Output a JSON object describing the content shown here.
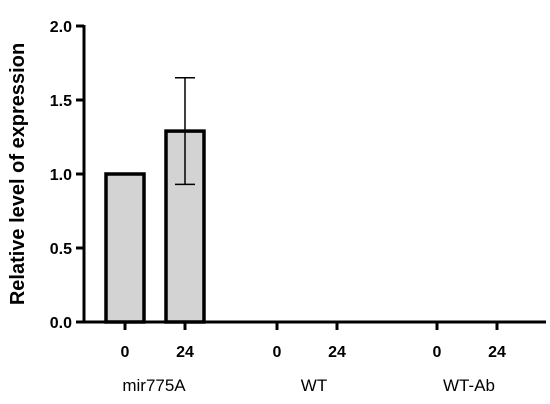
{
  "chart_data": {
    "type": "bar",
    "ylabel": "Relative level of expression",
    "xlabel": "",
    "title": "",
    "ylim": [
      0,
      2.0
    ],
    "yticks": [
      0.0,
      0.5,
      1.0,
      1.5,
      2.0
    ],
    "ytick_labels": [
      "0.0",
      "0.5",
      "1.0",
      "1.5",
      "2.0"
    ],
    "grid": false,
    "bar_fill": "#d3d3d3",
    "bar_stroke": "#000000",
    "groups": [
      {
        "name": "mir775A",
        "bars": [
          {
            "category": "0",
            "value": 1.0,
            "error": null
          },
          {
            "category": "24",
            "value": 1.29,
            "error": 0.36
          }
        ]
      },
      {
        "name": "WT",
        "bars": [
          {
            "category": "0",
            "value": 0,
            "error": null
          },
          {
            "category": "24",
            "value": 0,
            "error": null
          }
        ]
      },
      {
        "name": "WT-Ab",
        "bars": [
          {
            "category": "0",
            "value": 0,
            "error": null
          },
          {
            "category": "24",
            "value": 0,
            "error": null
          }
        ]
      }
    ]
  }
}
